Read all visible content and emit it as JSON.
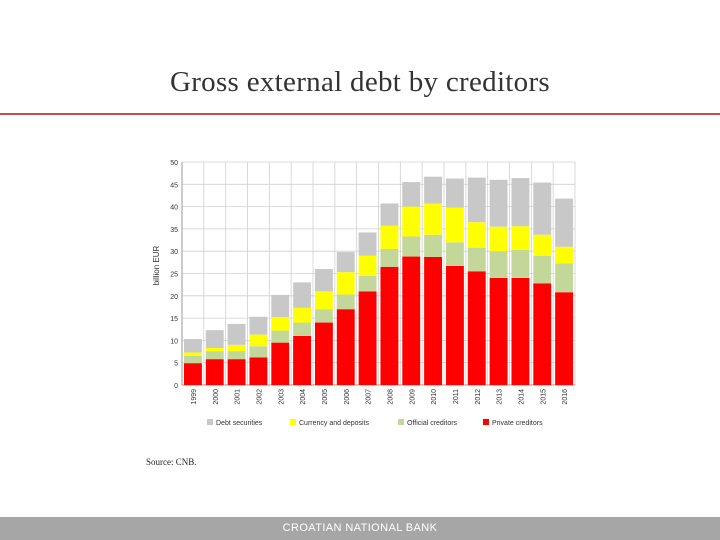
{
  "title": "Gross external debt by creditors",
  "source": "Source: CNB.",
  "footer": "CROATIAN NATIONAL BANK",
  "chart_data": {
    "type": "bar",
    "stacked": true,
    "ylabel": "billion EUR",
    "ylim": [
      0,
      50
    ],
    "yticks": [
      0,
      5,
      10,
      15,
      20,
      25,
      30,
      35,
      40,
      45,
      50
    ],
    "grid": true,
    "legend_position": "bottom",
    "categories": [
      "1999",
      "2000",
      "2001",
      "2002",
      "2003",
      "2004",
      "2005",
      "2006",
      "2007",
      "2008",
      "2009",
      "2010",
      "2011",
      "2012",
      "2013",
      "2014",
      "2015",
      "2016"
    ],
    "series": [
      {
        "name": "Private creditors",
        "color": "#ff0000",
        "values": [
          4.9,
          5.8,
          5.8,
          6.2,
          9.5,
          11.0,
          14.0,
          17.0,
          21.0,
          26.5,
          28.8,
          28.7,
          26.7,
          25.5,
          24.0,
          24.0,
          22.8,
          20.8
        ]
      },
      {
        "name": "Official creditors",
        "color": "#c4d79b",
        "values": [
          1.6,
          1.8,
          1.8,
          2.5,
          2.7,
          3.0,
          3.0,
          3.3,
          3.5,
          4.0,
          4.5,
          5.0,
          5.3,
          5.3,
          6.0,
          6.3,
          6.2,
          6.5
        ]
      },
      {
        "name": "Currency and deposits",
        "color": "#ffff00",
        "values": [
          0.8,
          0.7,
          1.4,
          2.6,
          3.0,
          3.3,
          4.0,
          5.0,
          4.5,
          5.2,
          6.7,
          7.0,
          7.8,
          5.7,
          5.5,
          5.3,
          4.7,
          3.7
        ]
      },
      {
        "name": "Debt securities",
        "color": "#c8c8c8",
        "values": [
          3.0,
          4.0,
          4.7,
          4.0,
          5.0,
          5.7,
          5.0,
          4.5,
          5.2,
          5.0,
          5.5,
          6.0,
          6.5,
          10.0,
          10.5,
          10.8,
          11.7,
          10.8
        ]
      }
    ]
  }
}
